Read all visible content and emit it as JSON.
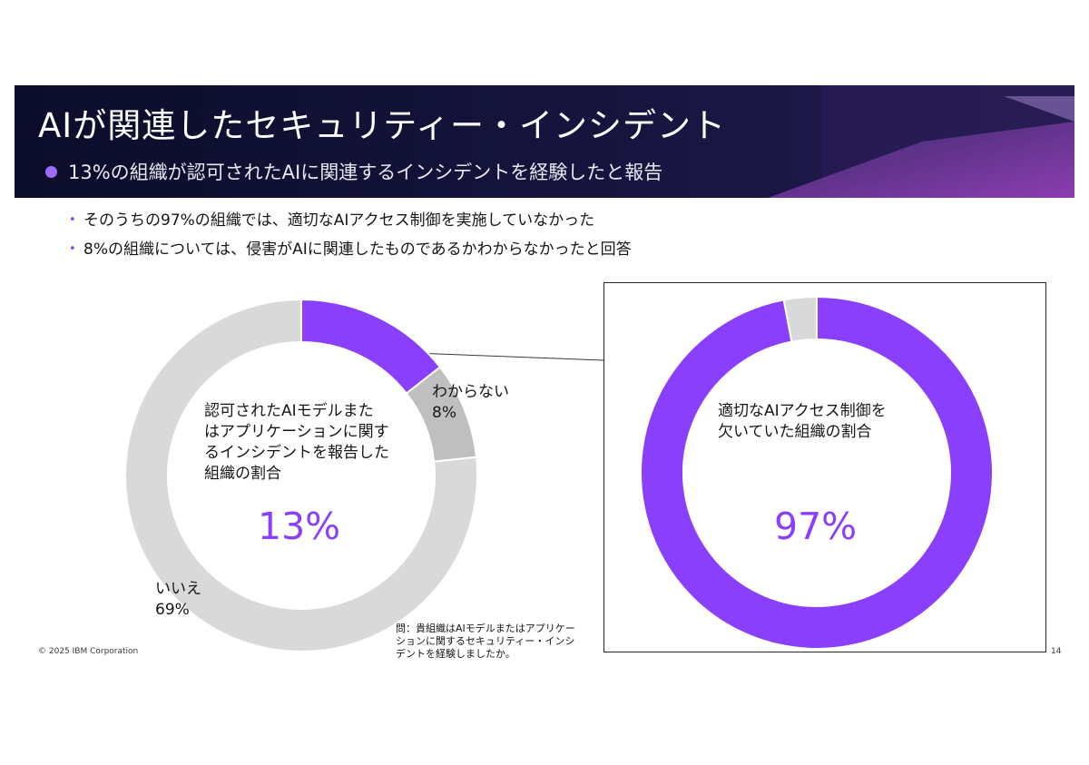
{
  "slide": {
    "title": "AIが関連したセキュリティー・インシデント",
    "subtitle": "13%の組織が認可されたAIに関連するインシデントを経験したと報告",
    "bullets": [
      "そのうちの97%の組織では、適切なAIアクセス制御を実施していなかった",
      "8%の組織については、侵害がAIに関連したものであるかわからなかったと回答"
    ],
    "footer_left": "© 2025 IBM Corporation",
    "page_number": "14",
    "question_note": [
      "問：貴組織はAIモデルまたはアプリケー",
      "ションに関するセキュリティー・インシ",
      "デントを経験しましたか。"
    ]
  },
  "colors": {
    "accent_purple": "#8a3ffc",
    "gray_light": "#d9d9d9",
    "gray_mid": "#bfbfbf",
    "banner_dark": "#0e0f2e"
  },
  "chart_data": [
    {
      "type": "pie",
      "variant": "donut",
      "center_text": [
        "認可されたAIモデルまた",
        "はアプリケーションに関す",
        "るインシデントを報告した",
        "組織の割合"
      ],
      "center_value": "13%",
      "slices": [
        {
          "label": "",
          "value": 13,
          "color": "#8a3ffc"
        },
        {
          "label": "わからない",
          "value": 8,
          "value_label": "8%",
          "color": "#bfbfbf"
        },
        {
          "label": "いいえ",
          "value": 69,
          "value_label": "69%",
          "color": "#d9d9d9"
        }
      ]
    },
    {
      "type": "pie",
      "variant": "donut",
      "center_text": [
        "適切なAIアクセス制御を",
        "欠いていた組織の割合"
      ],
      "center_value": "97%",
      "slices": [
        {
          "label": "",
          "value": 97,
          "color": "#8a3ffc"
        },
        {
          "label": "",
          "value": 3,
          "color": "#d9d9d9"
        }
      ]
    }
  ]
}
